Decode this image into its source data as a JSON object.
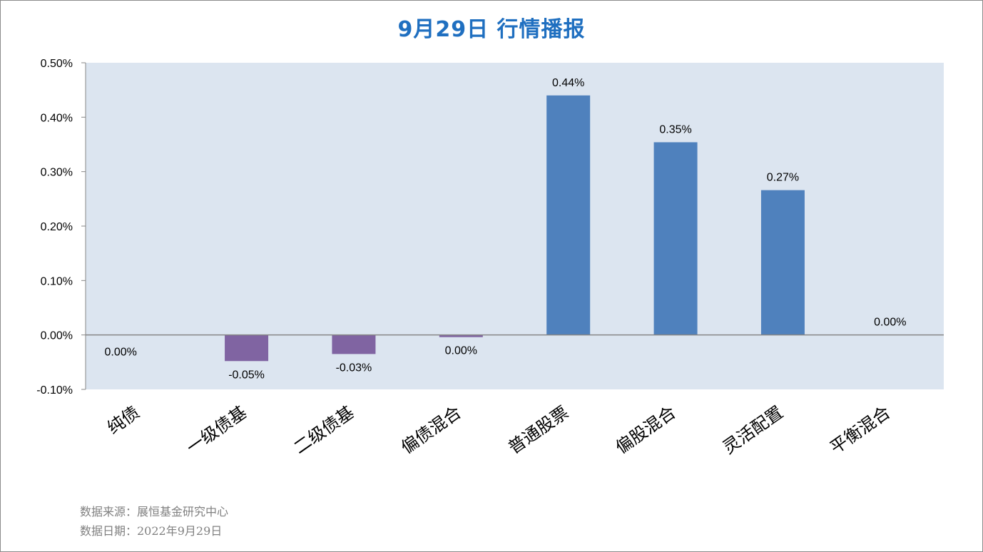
{
  "title": "9月29日   行情播报",
  "footer": {
    "source": "数据来源：展恒基金研究中心",
    "date": "数据日期：2022年9月29日"
  },
  "colors": {
    "title": "#1f6fc0",
    "plot_background": "#dce5f0",
    "positive_bar": "#4f81bd",
    "negative_bar": "#8064a2",
    "baseline": "#868686"
  },
  "chart_data": {
    "type": "bar",
    "title": "9月29日   行情播报",
    "categories": [
      "纯债",
      "一级债基",
      "二级债基",
      "偏债混合",
      "普通股票",
      "偏股混合",
      "灵活配置",
      "平衡混合"
    ],
    "values": [
      0.0,
      -0.048,
      -0.035,
      -0.004,
      0.44,
      0.354,
      0.266,
      0.0
    ],
    "data_labels": [
      "0.00%",
      "-0.05%",
      "-0.03%",
      "0.00%",
      "0.44%",
      "0.35%",
      "0.27%",
      "0.00%"
    ],
    "y_ticks": [
      -0.1,
      0.0,
      0.1,
      0.2,
      0.3,
      0.4,
      0.5
    ],
    "y_tick_labels": [
      "-0.10%",
      "0.00%",
      "0.10%",
      "0.20%",
      "0.30%",
      "0.40%",
      "0.50%"
    ],
    "ylim": [
      -0.1,
      0.5
    ],
    "xlabel": "",
    "ylabel": "",
    "grid": false,
    "legend": "none"
  }
}
